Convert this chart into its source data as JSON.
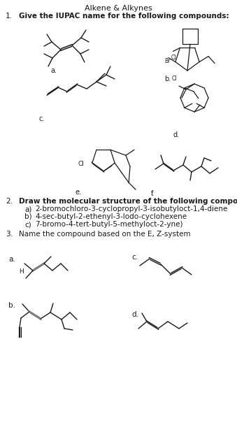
{
  "title": "Alkene & Alkynes",
  "bg_color": "#ffffff",
  "text_color": "#1a1a1a",
  "q1_label": "1.",
  "q1_text": "Give the IUPAC name for the following compounds:",
  "q2_label": "2.",
  "q2_text": "Draw the molecular structure of the following compounds",
  "q2a": "     2-bromochloro-3-cyclopropyl-3-isobutyloct-1,4-diene",
  "q2b": "     4-sec-butyl-2-ethenyl-3-Iodo-cyclohexene",
  "q2c": "     7-bromo-4-tert-butyl-5-methyloct-2-yne)",
  "q3_label": "3.",
  "q3_text": "Name the compound based on the E, Z-system",
  "line_color": "#1a1a1a",
  "gray_bond": "#777777",
  "font": "monospace"
}
